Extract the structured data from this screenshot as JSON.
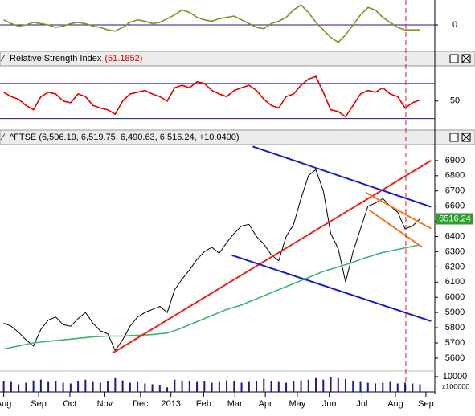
{
  "chart_data": [
    {
      "type": "line",
      "color": "#8c8c1c",
      "ylim": [
        -100,
        100
      ],
      "yticks": [
        0
      ],
      "levels": [
        0
      ],
      "values": [
        20,
        5,
        -5,
        0,
        10,
        5,
        0,
        -10,
        -5,
        5,
        10,
        5,
        -5,
        -10,
        -20,
        -25,
        -10,
        10,
        20,
        15,
        5,
        10,
        25,
        40,
        60,
        50,
        30,
        20,
        15,
        25,
        30,
        35,
        20,
        5,
        -10,
        -15,
        5,
        15,
        30,
        60,
        80,
        50,
        10,
        -20,
        -50,
        -70,
        -40,
        0,
        40,
        70,
        60,
        30,
        10,
        -10,
        -20,
        -20,
        -20
      ]
    },
    {
      "type": "line",
      "title": "Relative Strength Index",
      "value_label": "(51.1852)",
      "color": "#e00000",
      "ylim": [
        26,
        90
      ],
      "yticks": [
        50
      ],
      "levels": [
        30,
        70
      ],
      "values": [
        60,
        55,
        52,
        45,
        40,
        55,
        60,
        58,
        50,
        48,
        58,
        55,
        45,
        42,
        40,
        35,
        50,
        58,
        60,
        62,
        58,
        55,
        50,
        65,
        68,
        65,
        72,
        70,
        62,
        58,
        55,
        62,
        65,
        68,
        62,
        52,
        45,
        42,
        55,
        58,
        68,
        75,
        78,
        60,
        40,
        38,
        32,
        45,
        58,
        62,
        60,
        65,
        58,
        55,
        42,
        48,
        51.1852
      ]
    },
    {
      "type": "line",
      "title": "^FTSE (6,506.19, 6,519.75, 6,490.63, 6,516.24, +10.0400)",
      "ylim": [
        5515,
        7005
      ],
      "yticks": [
        5600,
        5700,
        5800,
        5900,
        6000,
        6100,
        6200,
        6300,
        6400,
        6500,
        6600,
        6700,
        6800,
        6900
      ],
      "xlim": [
        -0.5,
        58
      ],
      "xticks": [
        {
          "value": 0,
          "label": "Aug"
        },
        {
          "value": 4.7,
          "label": "Sep"
        },
        {
          "value": 8.9,
          "label": "Oct"
        },
        {
          "value": 13.6,
          "label": "Nov"
        },
        {
          "value": 18.4,
          "label": "Dec"
        },
        {
          "value": 22.5,
          "label": "2013"
        },
        {
          "value": 26.9,
          "label": "Feb"
        },
        {
          "value": 31.1,
          "label": "Mar"
        },
        {
          "value": 35.2,
          "label": "Apr"
        },
        {
          "value": 39.5,
          "label": "May"
        },
        {
          "value": 43.8,
          "label": "Jun"
        },
        {
          "value": 48.2,
          "label": "Jul"
        },
        {
          "value": 52.7,
          "label": "Aug"
        },
        {
          "value": 56.8,
          "label": "Sep"
        }
      ],
      "series": [
        {
          "color": "#000000",
          "values": [
            5830,
            5810,
            5770,
            5720,
            5680,
            5790,
            5850,
            5870,
            5820,
            5810,
            5860,
            5900,
            5830,
            5780,
            5760,
            5650,
            5720,
            5810,
            5870,
            5900,
            5920,
            5940,
            5900,
            6050,
            6120,
            6180,
            6250,
            6300,
            6330,
            6290,
            6360,
            6420,
            6470,
            6480,
            6400,
            6350,
            6280,
            6240,
            6400,
            6480,
            6650,
            6800,
            6840,
            6700,
            6420,
            6320,
            6100,
            6300,
            6450,
            6600,
            6620,
            6650,
            6600,
            6560,
            6450,
            6470,
            6516.24
          ]
        },
        {
          "color": "#3cb371",
          "values": [
            5660,
            5670,
            5680,
            5690,
            5700,
            5705,
            5710,
            5715,
            5720,
            5725,
            5730,
            5735,
            5740,
            5742,
            5745,
            5745,
            5745,
            5748,
            5750,
            5752,
            5755,
            5760,
            5765,
            5780,
            5800,
            5820,
            5840,
            5860,
            5880,
            5900,
            5920,
            5935,
            5950,
            5970,
            5990,
            6010,
            6030,
            6050,
            6070,
            6090,
            6110,
            6130,
            6150,
            6170,
            6185,
            6200,
            6215,
            6230,
            6250,
            6265,
            6280,
            6295,
            6305,
            6315,
            6325,
            6335,
            6345
          ]
        }
      ],
      "trendlines": [
        {
          "color": "#e8231a",
          "x": [
            14.6,
            57.5
          ],
          "y": [
            5632,
            6900
          ]
        },
        {
          "color": "#1a1ad0",
          "x": [
            33.5,
            57.5
          ],
          "y": [
            6992,
            6595
          ]
        },
        {
          "color": "#1a1ad0",
          "x": [
            30.7,
            57.5
          ],
          "y": [
            6277,
            5843
          ]
        },
        {
          "color": "#f07820",
          "x": [
            48.7,
            57.5
          ],
          "y": [
            6690,
            6452
          ]
        },
        {
          "color": "#f07820",
          "x": [
            49.2,
            56.3
          ],
          "y": [
            6573,
            6330
          ]
        }
      ],
      "vline": 54.1,
      "last_value": 6516.24,
      "last_color": "#2e9e2e"
    },
    {
      "type": "bar",
      "color": "#1a1a8c",
      "ylim": [
        0,
        13600
      ],
      "yticks": [
        10000
      ],
      "unit_label": "x100000",
      "values": [
        7000,
        6500,
        5000,
        6000,
        7500,
        8000,
        6500,
        7000,
        6000,
        5500,
        7000,
        8000,
        6500,
        6000,
        7000,
        9000,
        7500,
        6000,
        6500,
        5500,
        5000,
        4500,
        3000,
        8000,
        7500,
        7000,
        6500,
        7000,
        6000,
        6500,
        7500,
        7000,
        6000,
        6500,
        7000,
        8500,
        7000,
        6500,
        6000,
        7000,
        7500,
        8000,
        9000,
        8000,
        9500,
        9000,
        8500,
        7000,
        6500,
        6000,
        5500,
        6000,
        6500,
        5500,
        6000,
        5500,
        5000
      ]
    }
  ]
}
